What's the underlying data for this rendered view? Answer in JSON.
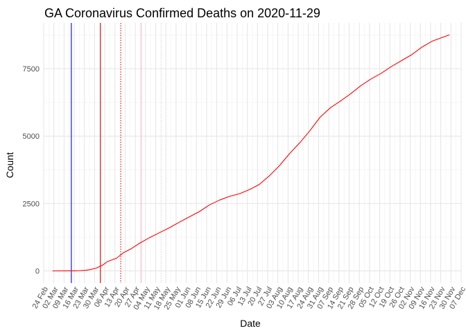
{
  "chart_data": {
    "type": "line",
    "title": "GA Coronavirus Confirmed Deaths on 2020-11-29",
    "xlabel": "Date",
    "ylabel": "Count",
    "x_range": [
      "2020-02-24",
      "2020-12-07"
    ],
    "ylim": [
      -450,
      9200
    ],
    "grid": true,
    "x_ticks": [
      "24 Feb",
      "02 Mar",
      "09 Mar",
      "16 Mar",
      "23 Mar",
      "30 Mar",
      "06 Apr",
      "13 Apr",
      "20 Apr",
      "27 Apr",
      "04 May",
      "11 May",
      "18 May",
      "25 May",
      "01 Jun",
      "08 Jun",
      "15 Jun",
      "22 Jun",
      "29 Jun",
      "06 Jul",
      "13 Jul",
      "20 Jul",
      "27 Jul",
      "03 Aug",
      "10 Aug",
      "17 Aug",
      "24 Aug",
      "31 Aug",
      "07 Sep",
      "14 Sep",
      "21 Sep",
      "28 Sep",
      "05 Oct",
      "12 Oct",
      "19 Oct",
      "26 Oct",
      "02 Nov",
      "09 Nov",
      "16 Nov",
      "23 Nov",
      "30 Nov",
      "07 Dec"
    ],
    "x_tick_dates": [
      "2020-02-24",
      "2020-03-02",
      "2020-03-09",
      "2020-03-16",
      "2020-03-23",
      "2020-03-30",
      "2020-04-06",
      "2020-04-13",
      "2020-04-20",
      "2020-04-27",
      "2020-05-04",
      "2020-05-11",
      "2020-05-18",
      "2020-05-25",
      "2020-06-01",
      "2020-06-08",
      "2020-06-15",
      "2020-06-22",
      "2020-06-29",
      "2020-07-06",
      "2020-07-13",
      "2020-07-20",
      "2020-07-27",
      "2020-08-03",
      "2020-08-10",
      "2020-08-17",
      "2020-08-24",
      "2020-08-31",
      "2020-09-07",
      "2020-09-14",
      "2020-09-21",
      "2020-09-28",
      "2020-10-05",
      "2020-10-12",
      "2020-10-19",
      "2020-10-26",
      "2020-11-02",
      "2020-11-09",
      "2020-11-16",
      "2020-11-23",
      "2020-11-30",
      "2020-12-07"
    ],
    "y_ticks": [
      0,
      2500,
      5000,
      7500
    ],
    "y_tick_labels": [
      "0",
      "2500",
      "5000",
      "7500"
    ],
    "vlines": [
      {
        "date": "2020-03-14",
        "color": "#0000ff",
        "style": "solid"
      },
      {
        "date": "2020-04-03",
        "color": "#cc0000",
        "style": "solid"
      },
      {
        "date": "2020-04-17",
        "color": "#ff0000",
        "style": "dotted"
      },
      {
        "date": "2020-05-01",
        "color": "#ffb6c1",
        "style": "solid"
      },
      {
        "date": "2020-05-15",
        "color": "#dddddd",
        "style": "dotted"
      }
    ],
    "series": [
      {
        "color": "#ff0000",
        "points": [
          [
            "2020-03-01",
            0
          ],
          [
            "2020-03-10",
            1
          ],
          [
            "2020-03-14",
            1
          ],
          [
            "2020-03-17",
            5
          ],
          [
            "2020-03-20",
            10
          ],
          [
            "2020-03-24",
            25
          ],
          [
            "2020-03-27",
            50
          ],
          [
            "2020-03-31",
            100
          ],
          [
            "2020-04-02",
            150
          ],
          [
            "2020-04-04",
            200
          ],
          [
            "2020-04-08",
            350
          ],
          [
            "2020-04-14",
            470
          ],
          [
            "2020-04-19",
            680
          ],
          [
            "2020-04-24",
            820
          ],
          [
            "2020-04-30",
            1030
          ],
          [
            "2020-05-07",
            1240
          ],
          [
            "2020-05-14",
            1430
          ],
          [
            "2020-05-20",
            1590
          ],
          [
            "2020-05-27",
            1800
          ],
          [
            "2020-06-03",
            2000
          ],
          [
            "2020-06-10",
            2200
          ],
          [
            "2020-06-17",
            2450
          ],
          [
            "2020-06-24",
            2630
          ],
          [
            "2020-07-01",
            2770
          ],
          [
            "2020-07-08",
            2870
          ],
          [
            "2020-07-15",
            3030
          ],
          [
            "2020-07-21",
            3200
          ],
          [
            "2020-07-28",
            3520
          ],
          [
            "2020-08-04",
            3900
          ],
          [
            "2020-08-11",
            4350
          ],
          [
            "2020-08-18",
            4750
          ],
          [
            "2020-08-25",
            5200
          ],
          [
            "2020-09-01",
            5700
          ],
          [
            "2020-09-08",
            6050
          ],
          [
            "2020-09-15",
            6300
          ],
          [
            "2020-09-22",
            6570
          ],
          [
            "2020-09-29",
            6870
          ],
          [
            "2020-10-06",
            7120
          ],
          [
            "2020-10-13",
            7330
          ],
          [
            "2020-10-20",
            7580
          ],
          [
            "2020-10-27",
            7800
          ],
          [
            "2020-11-03",
            8020
          ],
          [
            "2020-11-10",
            8300
          ],
          [
            "2020-11-17",
            8520
          ],
          [
            "2020-11-23",
            8640
          ],
          [
            "2020-11-29",
            8760
          ]
        ]
      }
    ]
  }
}
